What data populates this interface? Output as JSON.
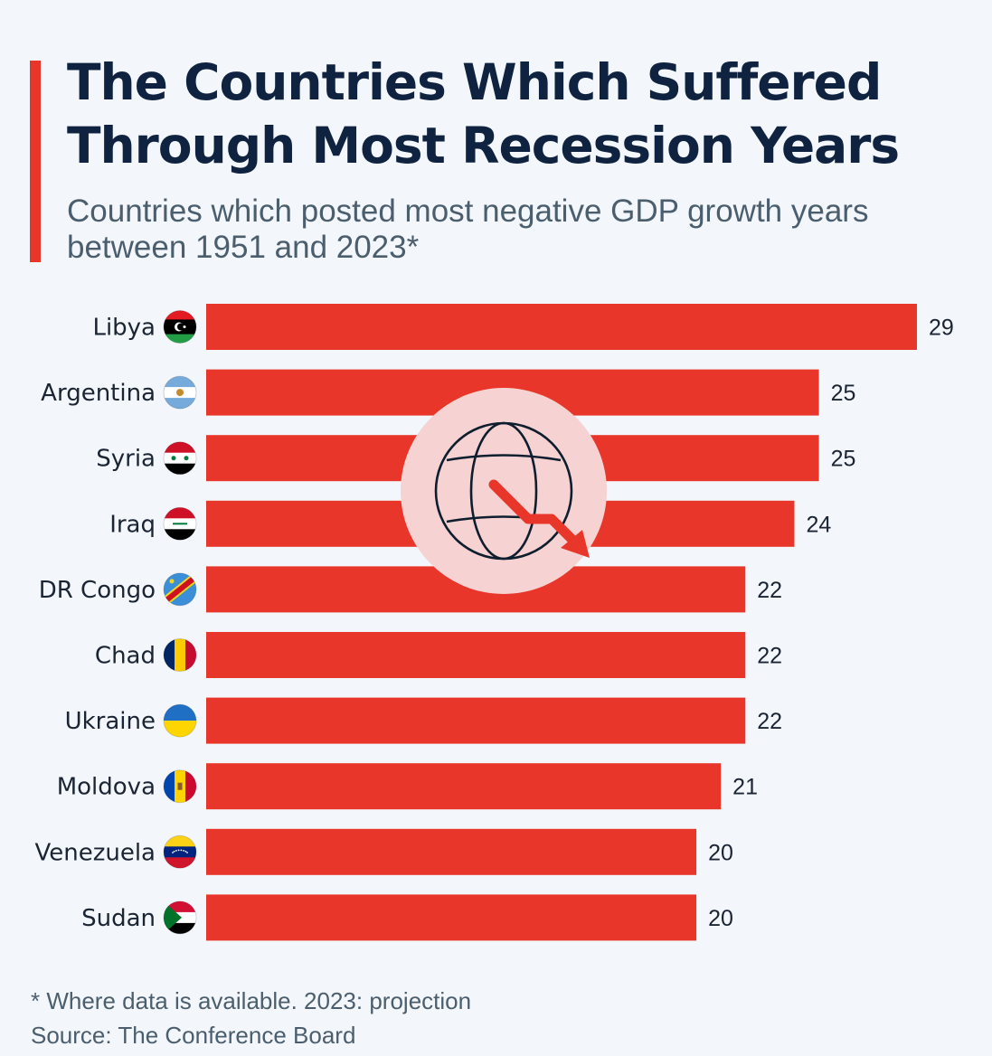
{
  "header": {
    "title_line1": "The Countries Which Suffered",
    "title_line2": "Through Most Recession Years",
    "subtitle_line1": "Countries which posted most negative GDP growth years",
    "subtitle_line2": "between 1951 and 2023*"
  },
  "footer": {
    "note": "* Where data is available. 2023: projection",
    "source": "Source: The Conference Board"
  },
  "colors": {
    "background": "#f3f6fa",
    "bar": "#e8372a",
    "accent": "#e8372a",
    "title": "#0f2340",
    "label": "#1a2433",
    "icon_circle": "#f6d3d2"
  },
  "icon": {
    "name": "globe-recession-icon"
  },
  "chart_data": {
    "type": "bar",
    "orientation": "horizontal",
    "title": "The Countries Which Suffered Through Most Recession Years",
    "subtitle": "Countries which posted most negative GDP growth years between 1951 and 2023*",
    "xlabel": "",
    "ylabel": "",
    "categories": [
      "Libya",
      "Argentina",
      "Syria",
      "Iraq",
      "DR Congo",
      "Chad",
      "Ukraine",
      "Moldova",
      "Venezuela",
      "Sudan"
    ],
    "flags": [
      "libya-flag",
      "argentina-flag",
      "syria-flag",
      "iraq-flag",
      "dr-congo-flag",
      "chad-flag",
      "ukraine-flag",
      "moldova-flag",
      "venezuela-flag",
      "sudan-flag"
    ],
    "values": [
      29,
      25,
      25,
      24,
      22,
      22,
      22,
      21,
      20,
      20
    ],
    "unit": "recession years",
    "xlim": [
      0,
      29
    ],
    "grid": false,
    "data_labels": true,
    "legend": "none",
    "notes": [
      "* Where data is available. 2023: projection",
      "Source: The Conference Board"
    ]
  }
}
